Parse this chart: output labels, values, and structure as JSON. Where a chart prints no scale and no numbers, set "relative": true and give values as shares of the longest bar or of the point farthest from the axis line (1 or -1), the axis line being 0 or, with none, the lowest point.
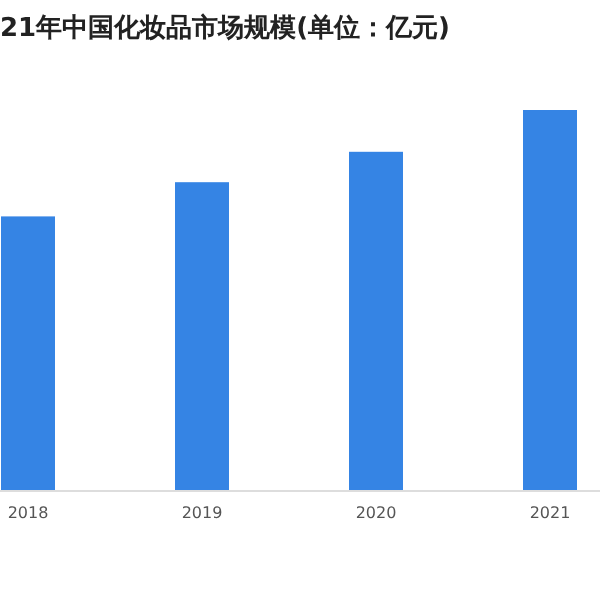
{
  "chart_data": {
    "type": "bar",
    "title": "21年中国化妆品市场规模(单位：亿元)",
    "relative": true,
    "color": "#3584e4",
    "categories": [
      "2018",
      "2019",
      "2020",
      "2021"
    ],
    "values": [
      0.72,
      0.81,
      0.89,
      1
    ]
  }
}
